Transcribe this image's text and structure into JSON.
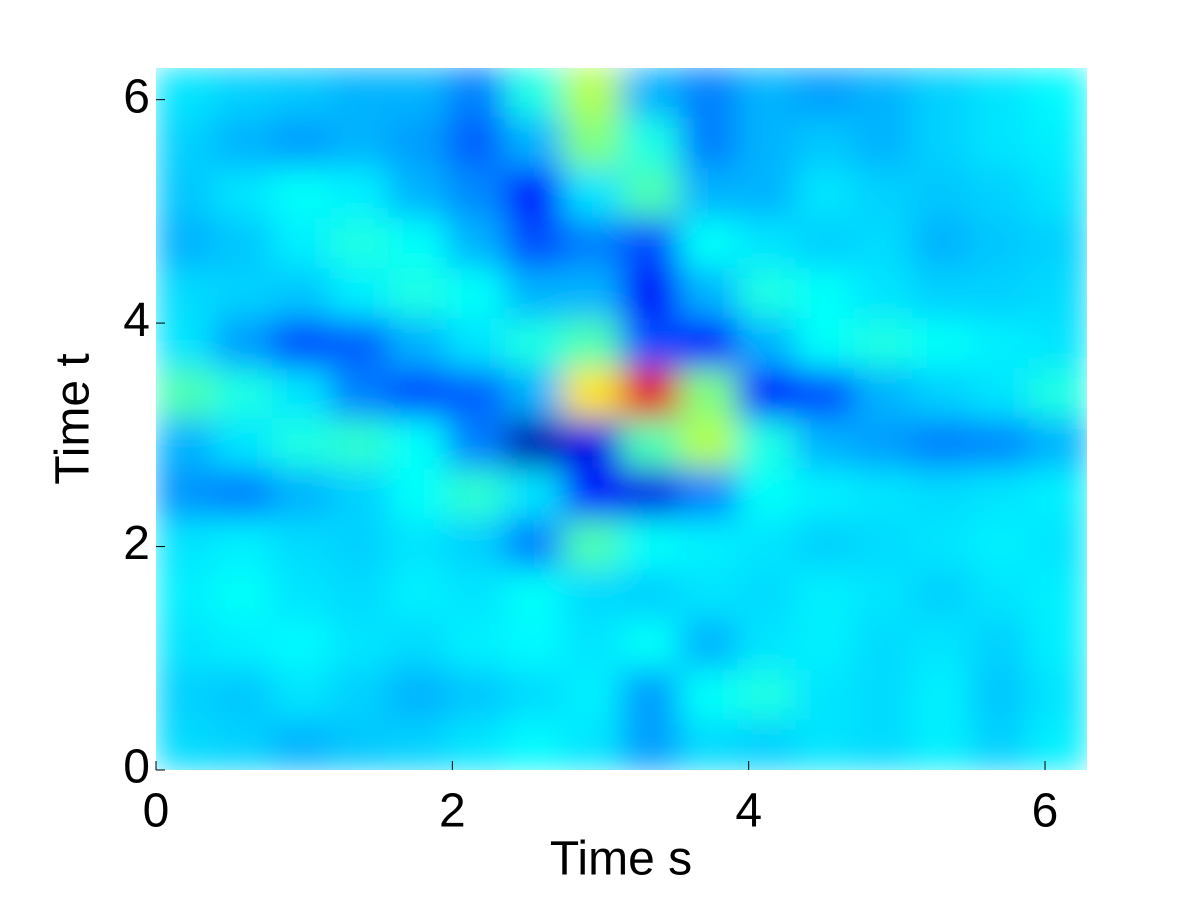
{
  "chart_data": {
    "type": "heatmap",
    "colormap": "jet",
    "zlim": [
      0,
      1
    ],
    "xlabel": "Time s",
    "ylabel": "Time t",
    "xlim": [
      0,
      6.2832
    ],
    "ylim": [
      0,
      6.2832
    ],
    "xticks": [
      0,
      2,
      4,
      6
    ],
    "yticks": [
      0,
      2,
      4,
      6
    ],
    "x": [
      0.196,
      0.589,
      0.982,
      1.374,
      1.767,
      2.16,
      2.553,
      2.945,
      3.338,
      3.731,
      4.123,
      4.516,
      4.909,
      5.301,
      5.694,
      6.087
    ],
    "y": [
      6.059,
      5.61,
      5.161,
      4.712,
      4.264,
      3.815,
      3.366,
      2.917,
      2.468,
      2.02,
      1.571,
      1.122,
      0.673,
      0.224
    ],
    "z": [
      [
        0.35,
        0.33,
        0.32,
        0.3,
        0.3,
        0.25,
        0.4,
        0.55,
        0.3,
        0.25,
        0.3,
        0.28,
        0.3,
        0.33,
        0.35,
        0.37
      ],
      [
        0.33,
        0.3,
        0.28,
        0.3,
        0.28,
        0.22,
        0.3,
        0.5,
        0.4,
        0.25,
        0.3,
        0.32,
        0.3,
        0.33,
        0.35,
        0.36
      ],
      [
        0.32,
        0.35,
        0.38,
        0.36,
        0.3,
        0.26,
        0.15,
        0.35,
        0.45,
        0.3,
        0.3,
        0.35,
        0.33,
        0.32,
        0.33,
        0.35
      ],
      [
        0.3,
        0.32,
        0.36,
        0.4,
        0.38,
        0.3,
        0.2,
        0.25,
        0.2,
        0.38,
        0.35,
        0.33,
        0.34,
        0.3,
        0.32,
        0.33
      ],
      [
        0.34,
        0.33,
        0.32,
        0.36,
        0.4,
        0.38,
        0.3,
        0.3,
        0.12,
        0.3,
        0.4,
        0.38,
        0.35,
        0.33,
        0.33,
        0.34
      ],
      [
        0.35,
        0.28,
        0.2,
        0.22,
        0.3,
        0.35,
        0.4,
        0.45,
        0.2,
        0.15,
        0.3,
        0.38,
        0.4,
        0.38,
        0.36,
        0.35
      ],
      [
        0.45,
        0.4,
        0.35,
        0.25,
        0.2,
        0.22,
        0.3,
        0.65,
        0.9,
        0.5,
        0.15,
        0.2,
        0.3,
        0.33,
        0.35,
        0.4
      ],
      [
        0.3,
        0.35,
        0.4,
        0.42,
        0.38,
        0.25,
        0.05,
        0.1,
        0.45,
        0.55,
        0.4,
        0.3,
        0.28,
        0.25,
        0.26,
        0.3
      ],
      [
        0.27,
        0.25,
        0.3,
        0.33,
        0.38,
        0.42,
        0.35,
        0.15,
        0.1,
        0.25,
        0.38,
        0.36,
        0.35,
        0.34,
        0.35,
        0.36
      ],
      [
        0.35,
        0.36,
        0.34,
        0.33,
        0.35,
        0.33,
        0.25,
        0.45,
        0.38,
        0.36,
        0.35,
        0.33,
        0.34,
        0.35,
        0.36,
        0.35
      ],
      [
        0.36,
        0.38,
        0.35,
        0.34,
        0.36,
        0.35,
        0.38,
        0.34,
        0.33,
        0.35,
        0.34,
        0.36,
        0.35,
        0.33,
        0.35,
        0.36
      ],
      [
        0.35,
        0.36,
        0.37,
        0.35,
        0.34,
        0.36,
        0.37,
        0.35,
        0.38,
        0.3,
        0.35,
        0.36,
        0.34,
        0.35,
        0.33,
        0.36
      ],
      [
        0.33,
        0.32,
        0.35,
        0.33,
        0.3,
        0.32,
        0.34,
        0.36,
        0.28,
        0.38,
        0.4,
        0.35,
        0.34,
        0.36,
        0.32,
        0.35
      ],
      [
        0.34,
        0.33,
        0.3,
        0.32,
        0.33,
        0.35,
        0.37,
        0.35,
        0.28,
        0.34,
        0.33,
        0.35,
        0.34,
        0.36,
        0.33,
        0.36
      ]
    ]
  }
}
